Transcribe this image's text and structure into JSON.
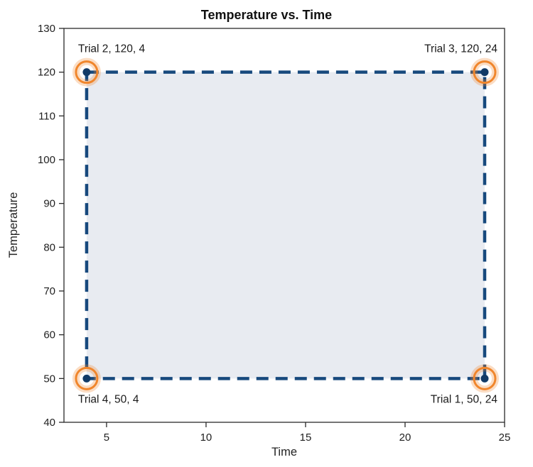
{
  "chart_data": {
    "type": "scatter",
    "title": "Temperature vs. Time",
    "xlabel": "Time",
    "ylabel": "Temperature",
    "xlim": [
      2.86,
      25
    ],
    "ylim": [
      40,
      130
    ],
    "x_ticks": [
      5,
      10,
      15,
      20,
      25
    ],
    "y_ticks": [
      40,
      50,
      60,
      70,
      80,
      90,
      100,
      110,
      120,
      130
    ],
    "grid": false,
    "legend": "none",
    "connection": "dashed-rectangle",
    "fill_color": "#e8ebf1",
    "line_color": "#17497d",
    "point_color": "#123a66",
    "highlight_color": "#f0862c",
    "points": [
      {
        "label": "Trial 2, 120, 4",
        "x": 4,
        "y": 120,
        "label_pos": "above",
        "label_align": "start",
        "highlighted": true
      },
      {
        "label": "Trial 3, 120, 24",
        "x": 24,
        "y": 120,
        "label_pos": "above",
        "label_align": "end",
        "highlighted": true
      },
      {
        "label": "Trial 4, 50, 4",
        "x": 4,
        "y": 50,
        "label_pos": "below",
        "label_align": "start",
        "highlighted": true
      },
      {
        "label": "Trial 1, 50, 24",
        "x": 24,
        "y": 50,
        "label_pos": "below",
        "label_align": "end",
        "highlighted": true
      }
    ]
  }
}
